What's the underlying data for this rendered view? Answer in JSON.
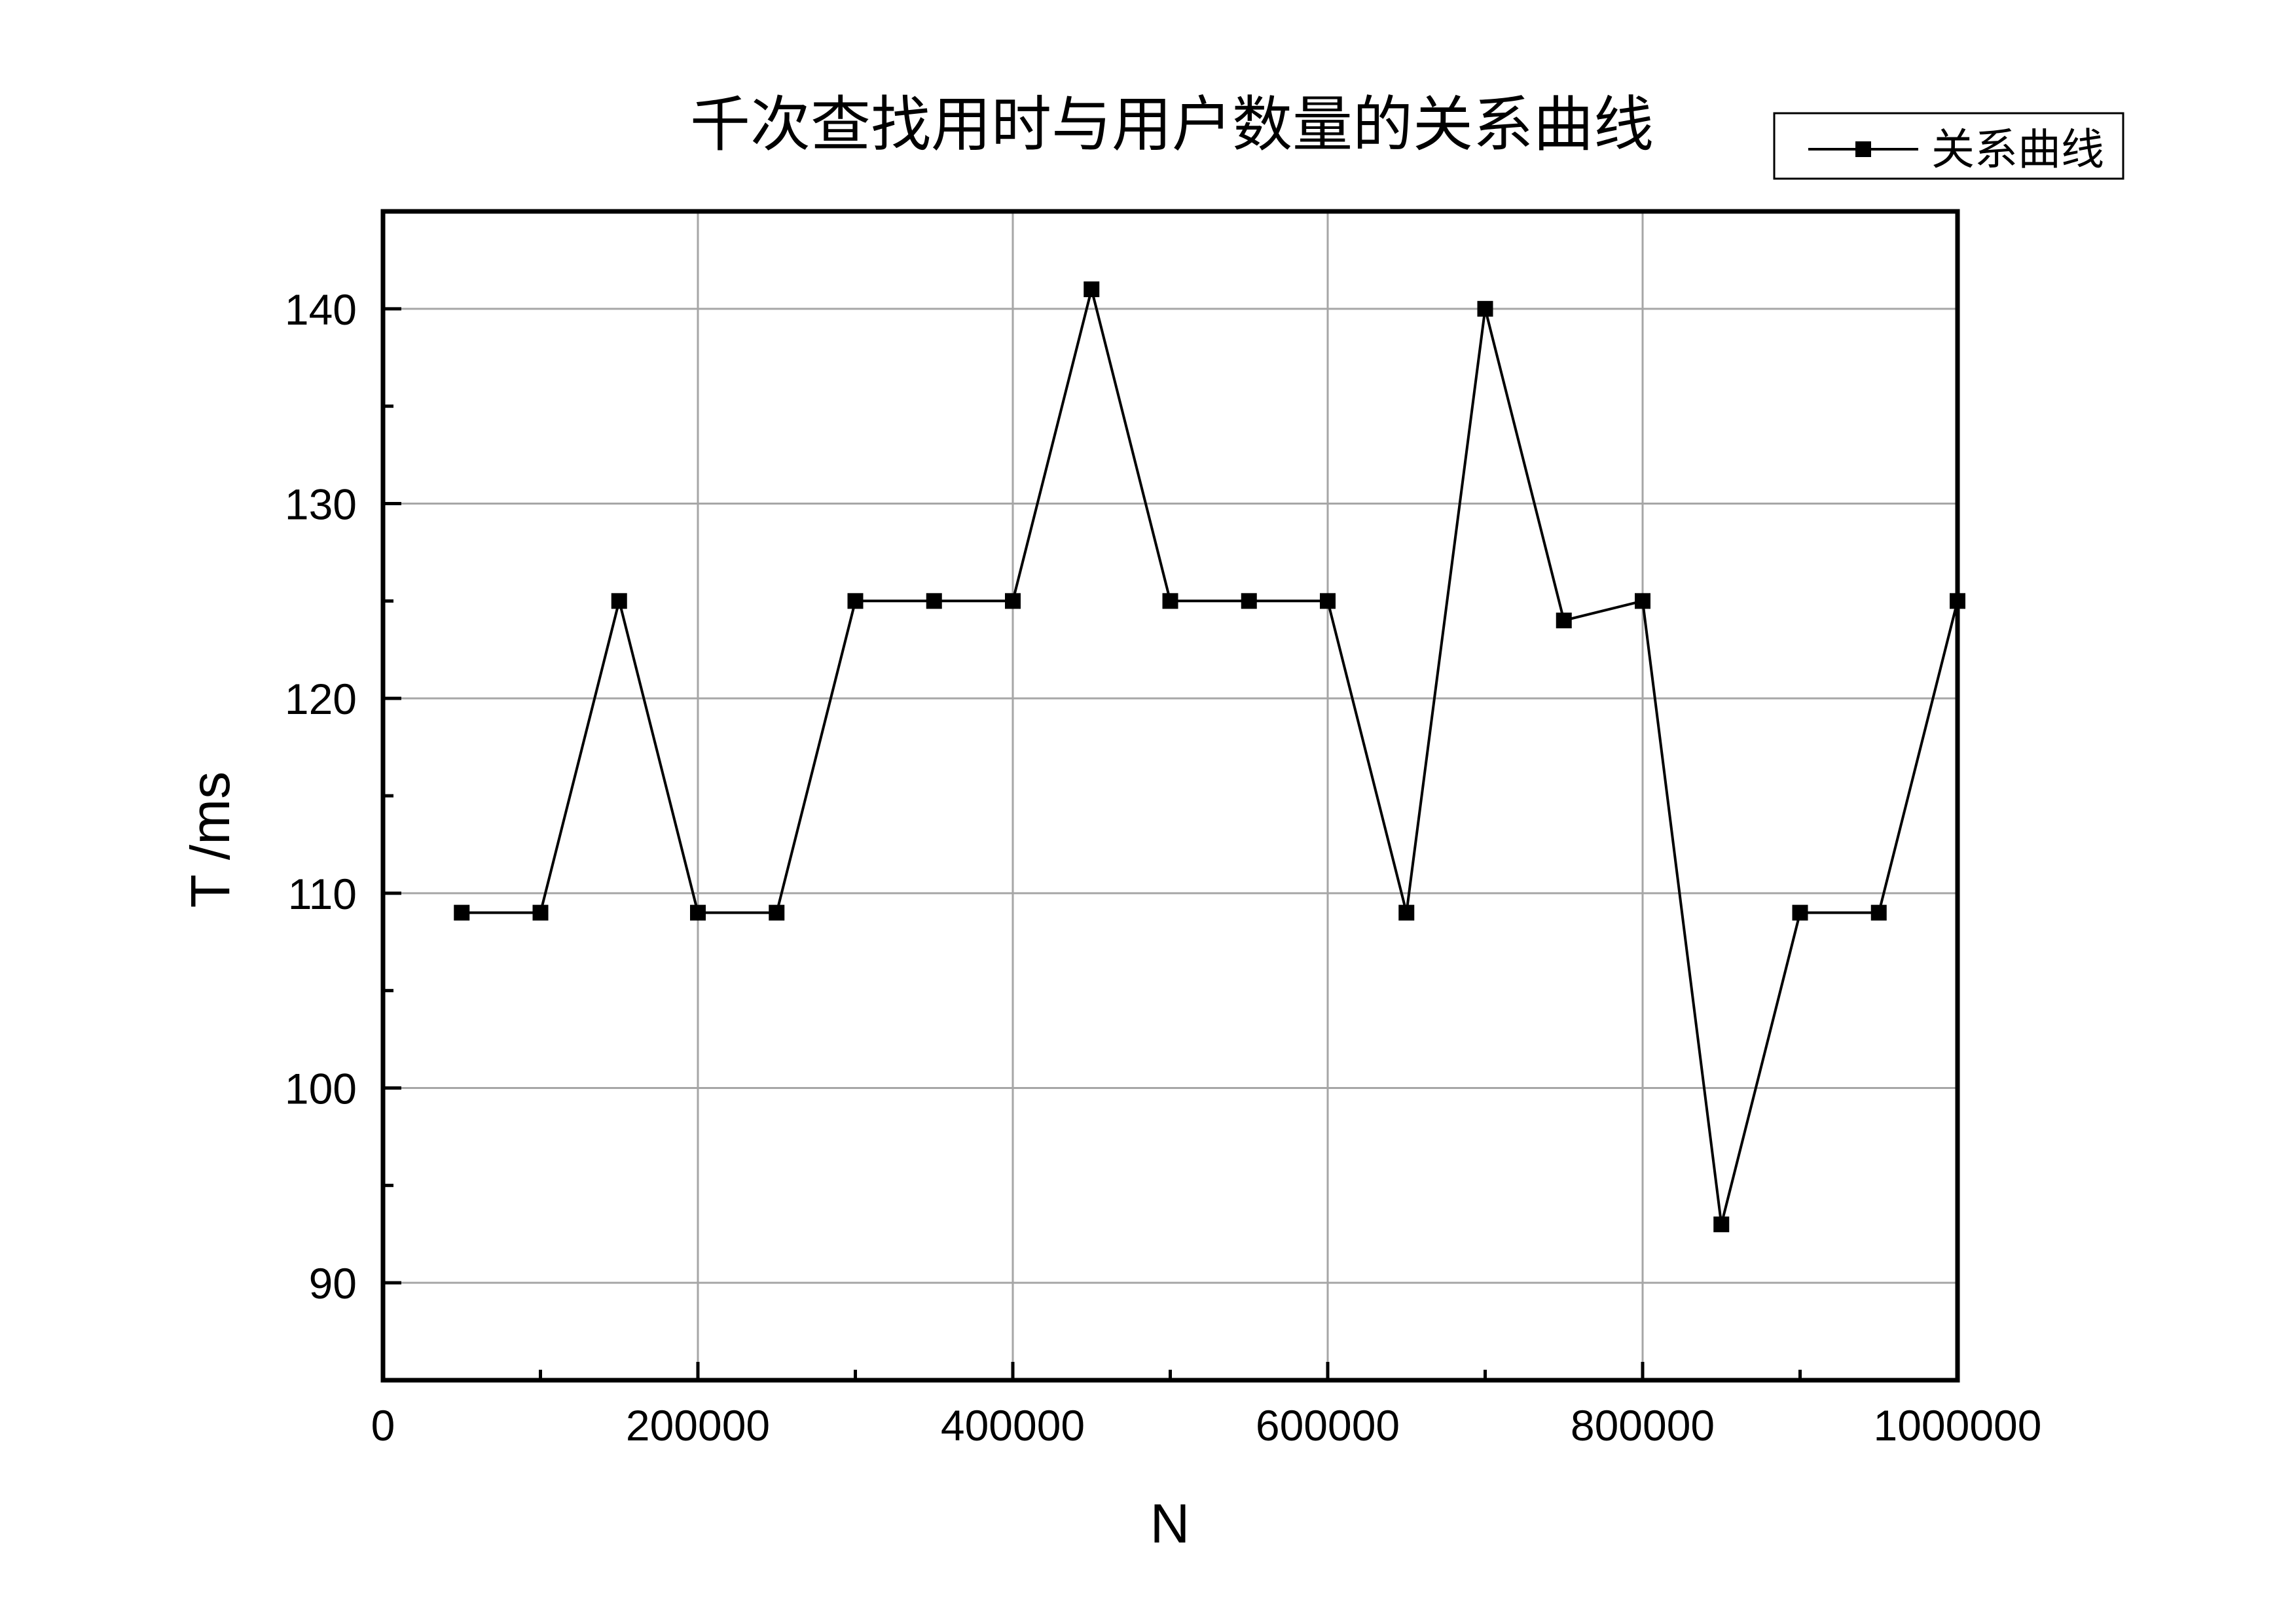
{
  "chart_data": {
    "type": "line",
    "title": "千次查找用时与用户数量的关系曲线",
    "xlabel": "N",
    "ylabel": "T /ms",
    "xlim": [
      0,
      1000000
    ],
    "ylim": [
      85,
      145
    ],
    "xticks": [
      0,
      200000,
      400000,
      600000,
      800000,
      1000000
    ],
    "xtick_labels": [
      "0",
      "200000",
      "400000",
      "600000",
      "800000",
      "1000000"
    ],
    "xminor": [
      100000,
      300000,
      500000,
      700000,
      900000
    ],
    "yticks": [
      90,
      100,
      110,
      120,
      130,
      140
    ],
    "ytick_labels": [
      "90",
      "100",
      "110",
      "120",
      "130",
      "140"
    ],
    "yminor": [
      95,
      105,
      115,
      125,
      135
    ],
    "grid": true,
    "legend_position": "top-right",
    "series": [
      {
        "name": "关系曲线",
        "color": "#000000",
        "marker": "square",
        "x": [
          50000,
          100000,
          150000,
          200000,
          250000,
          300000,
          350000,
          400000,
          450000,
          500000,
          550000,
          600000,
          650000,
          700000,
          750000,
          800000,
          850000,
          900000,
          950000,
          1000000
        ],
        "y": [
          109,
          109,
          125,
          109,
          109,
          125,
          125,
          125,
          141,
          125,
          125,
          125,
          109,
          140,
          124,
          125,
          93,
          109,
          109,
          125
        ]
      }
    ]
  }
}
